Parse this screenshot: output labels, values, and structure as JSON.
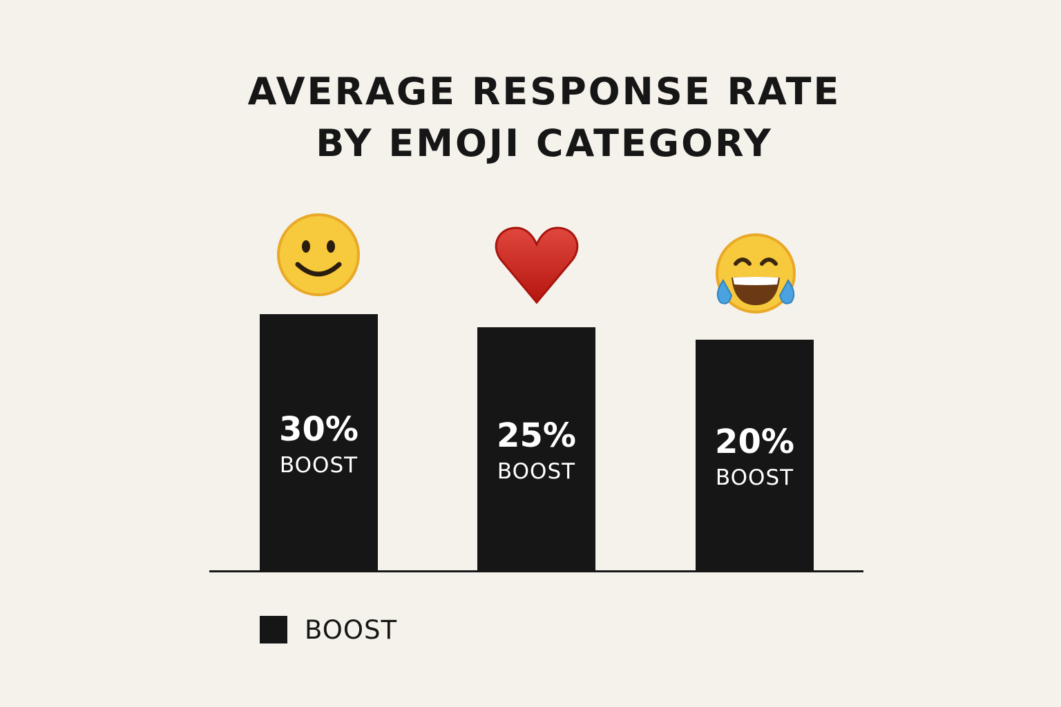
{
  "chart_data": {
    "type": "bar",
    "title": "AVERAGE RESPONSE RATE BY EMOJI CATEGORY",
    "title_lines": [
      "AVERAGE RESPONSE RATE",
      "BY EMOJI CATEGORY"
    ],
    "categories": [
      "smiling face",
      "red heart",
      "face with tears of joy"
    ],
    "category_icons": [
      "smiley-emoji-icon",
      "heart-emoji-icon",
      "laughing-crying-emoji-icon"
    ],
    "values": [
      30,
      25,
      20
    ],
    "data_labels": [
      "30%",
      "25%",
      "20%"
    ],
    "data_sublabel": "BOOST",
    "xlabel": "",
    "ylabel": "",
    "unit": "%",
    "grid": false,
    "legend": {
      "position": "bottom-left",
      "entries": [
        {
          "label": "BOOST",
          "color": "#161616"
        }
      ]
    },
    "bar_color": "#161616"
  }
}
